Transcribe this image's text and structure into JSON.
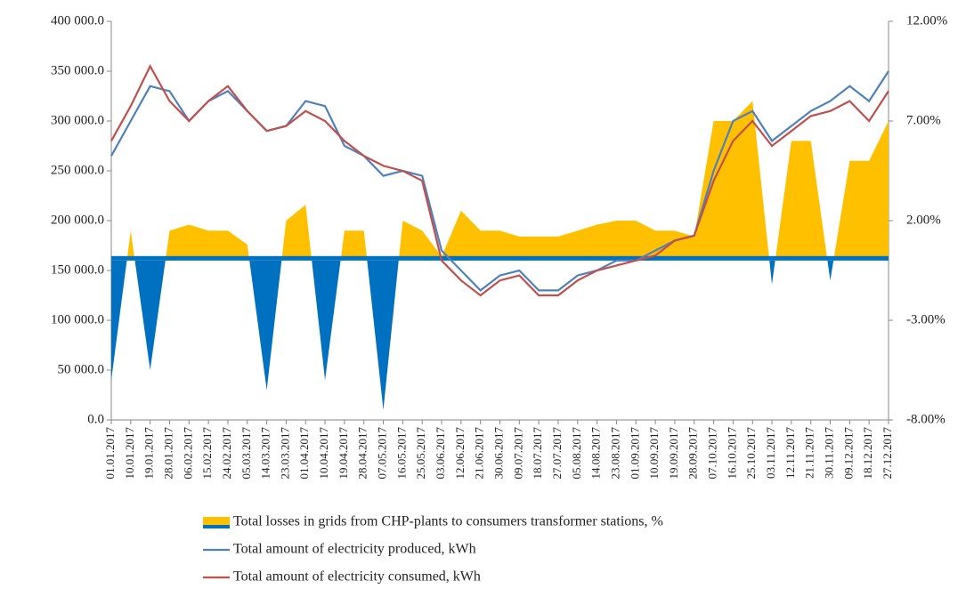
{
  "chart_data": {
    "type": "area-line",
    "categories": [
      "01.01.2017",
      "10.01.2017",
      "19.01.2017",
      "28.01.2017",
      "06.02.2017",
      "15.02.2017",
      "24.02.2017",
      "05.03.2017",
      "14.03.2017",
      "23.03.2017",
      "01.04.2017",
      "10.04.2017",
      "19.04.2017",
      "28.04.2017",
      "07.05.2017",
      "16.05.2017",
      "25.05.2017",
      "03.06.2017",
      "12.06.2017",
      "21.06.2017",
      "30.06.2017",
      "09.07.2017",
      "18.07.2017",
      "27.07.2017",
      "05.08.2017",
      "14.08.2017",
      "23.08.2017",
      "01.09.2017",
      "10.09.2017",
      "19.09.2017",
      "28.09.2017",
      "07.10.2017",
      "16.10.2017",
      "25.10.2017",
      "03.11.2017",
      "12.11.2017",
      "21.11.2017",
      "30.11.2017",
      "09.12.2017",
      "18.12.2017",
      "27.12.2017"
    ],
    "series": [
      {
        "name": "Total losses in grids from CHP-plants to consumers transformer stations, %",
        "kind": "area",
        "axis": "y2",
        "color": "#ffc000",
        "negative_color": "#0070c0",
        "values": [
          -6,
          1.5,
          -5.5,
          1.5,
          1.8,
          1.5,
          1.5,
          0.8,
          -6.5,
          2,
          2.8,
          -6,
          1.5,
          1.5,
          -7.5,
          2,
          1.5,
          0.2,
          2.5,
          1.5,
          1.5,
          1.2,
          1.2,
          1.2,
          1.5,
          1.8,
          2,
          2,
          1.5,
          1.5,
          1.2,
          7,
          7,
          8,
          -1.2,
          6,
          6,
          -1,
          5,
          5,
          7
        ]
      },
      {
        "name": "Total amount of electricity produced, kWh",
        "kind": "line",
        "color": "#4f81bd",
        "values": [
          265000,
          300000,
          335000,
          330000,
          300000,
          320000,
          330000,
          310000,
          290000,
          295000,
          320000,
          315000,
          275000,
          265000,
          245000,
          250000,
          245000,
          170000,
          150000,
          130000,
          145000,
          150000,
          130000,
          130000,
          145000,
          150000,
          160000,
          160000,
          170000,
          180000,
          185000,
          250000,
          300000,
          310000,
          280000,
          295000,
          310000,
          320000,
          335000,
          320000,
          350000
        ]
      },
      {
        "name": "Total amount of electricity consumed, kWh",
        "kind": "line",
        "color": "#c0504d",
        "values": [
          280000,
          315000,
          355000,
          320000,
          300000,
          320000,
          335000,
          310000,
          290000,
          295000,
          310000,
          300000,
          280000,
          265000,
          255000,
          250000,
          240000,
          160000,
          140000,
          125000,
          140000,
          145000,
          125000,
          125000,
          140000,
          150000,
          155000,
          160000,
          165000,
          180000,
          185000,
          240000,
          280000,
          300000,
          275000,
          290000,
          305000,
          310000,
          320000,
          300000,
          330000
        ]
      }
    ],
    "ylim": [
      0,
      400000
    ],
    "yticks": [
      {
        "value": 0,
        "label": "0.0"
      },
      {
        "value": 50000,
        "label": "50 000.0"
      },
      {
        "value": 100000,
        "label": "100 000.0"
      },
      {
        "value": 150000,
        "label": "150 000.0"
      },
      {
        "value": 200000,
        "label": "200 000.0"
      },
      {
        "value": 250000,
        "label": "250 000.0"
      },
      {
        "value": 300000,
        "label": "300 000.0"
      },
      {
        "value": 350000,
        "label": "350 000.0"
      },
      {
        "value": 400000,
        "label": "400 000.0"
      }
    ],
    "y2lim": [
      -8,
      12
    ],
    "y2ticks": [
      {
        "value": -8,
        "label": "-8.00%"
      },
      {
        "value": -3,
        "label": "-3.00%"
      },
      {
        "value": 2,
        "label": "2.00%"
      },
      {
        "value": 7,
        "label": "7.00%"
      },
      {
        "value": 12,
        "label": "12.00%"
      }
    ]
  }
}
